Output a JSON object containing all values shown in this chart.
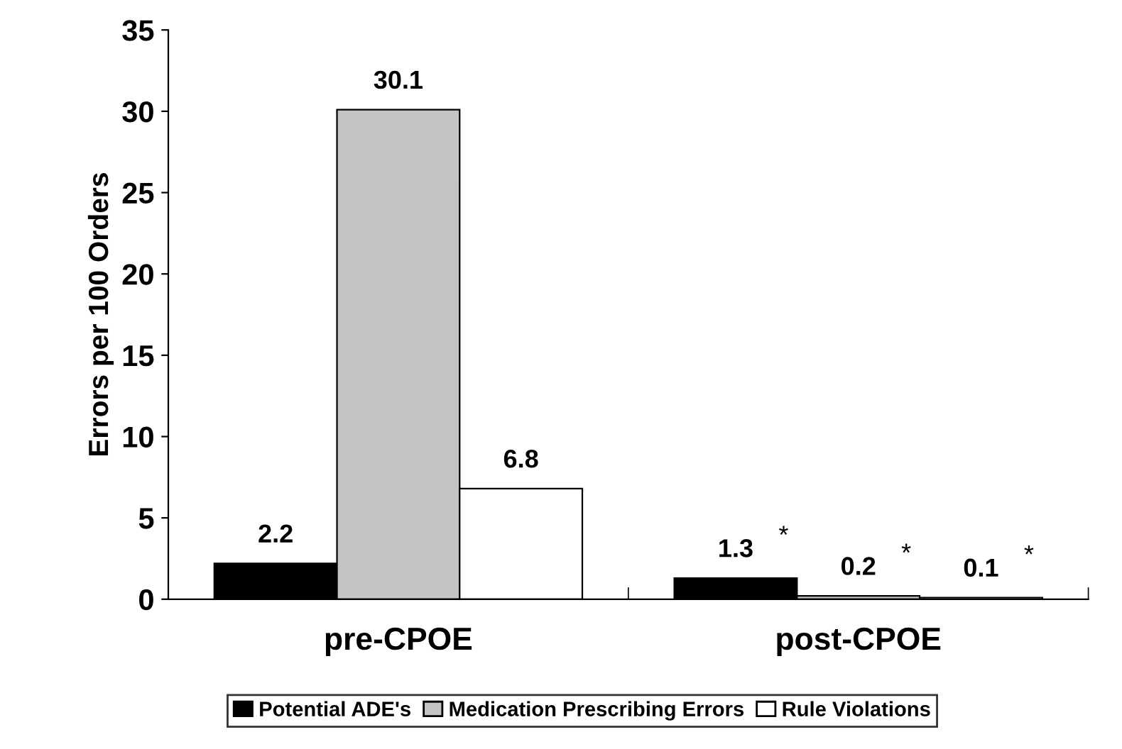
{
  "chart_data": {
    "type": "bar",
    "ylabel": "Errors per 100 Orders",
    "categories": [
      "pre-CPOE",
      "post-CPOE"
    ],
    "series": [
      {
        "name": "Potential ADE's",
        "color": "#000000",
        "values": [
          2.2,
          1.3
        ]
      },
      {
        "name": "Medication Prescribing Errors",
        "color": "#c4c4c4",
        "values": [
          30.1,
          0.2
        ]
      },
      {
        "name": "Rule Violations",
        "color": "#ffffff",
        "values": [
          6.8,
          0.1
        ]
      }
    ],
    "ylim": [
      0,
      35
    ],
    "yticks": [
      0,
      5,
      10,
      15,
      20,
      25,
      30,
      35
    ],
    "data_labels": true,
    "legend": "bottom",
    "grid": false,
    "annotations": [
      "*",
      "*",
      "*"
    ]
  }
}
